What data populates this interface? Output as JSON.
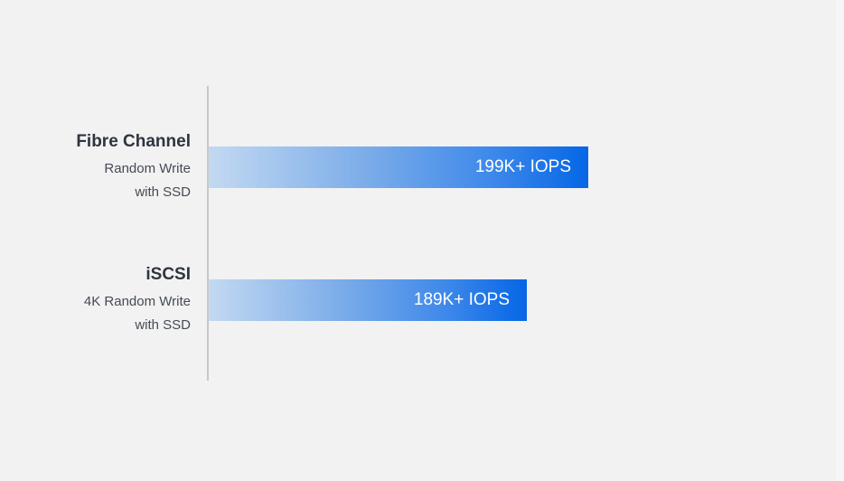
{
  "chart_data": {
    "type": "bar",
    "orientation": "horizontal",
    "categories": [
      "Fibre Channel",
      "iSCSI"
    ],
    "subtitles": [
      "Random Write\nwith SSD",
      "4K Random Write\nwith SSD"
    ],
    "subtitle_lines": [
      [
        "Random Write",
        "with SSD"
      ],
      [
        "4K Random Write",
        "with SSD"
      ]
    ],
    "values": [
      199,
      189
    ],
    "unit": "K IOPS",
    "data_labels": [
      "199K+ IOPS",
      "189K+ IOPS"
    ],
    "bar_gradient": [
      "#c3d9f2",
      "#0566e6"
    ],
    "grid": false
  }
}
